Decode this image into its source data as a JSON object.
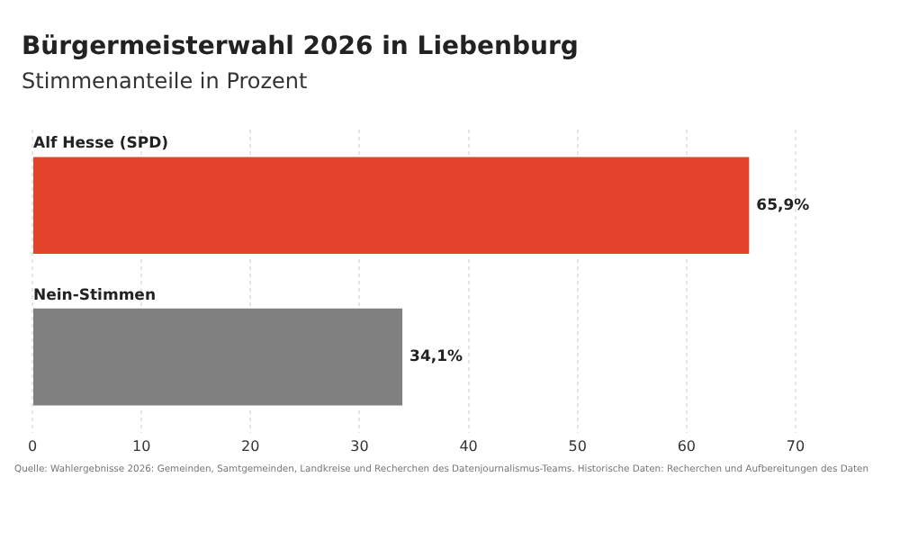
{
  "chart_data": {
    "type": "bar",
    "orientation": "horizontal",
    "title": "Bürgermeisterwahl 2026 in Liebenburg",
    "subtitle": "Stimmenanteile in Prozent",
    "categories": [
      "Alf Hesse (SPD)",
      "Nein-Stimmen"
    ],
    "values": [
      65.9,
      34.1
    ],
    "colors": [
      "#e2432a",
      "#808080"
    ],
    "value_labels": [
      "65,9%",
      "34,1%"
    ],
    "xlim": [
      0,
      70
    ],
    "xticks": [
      0,
      10,
      20,
      30,
      40,
      50,
      60,
      70
    ],
    "grid": "x",
    "legend": false,
    "annotations": [
      "Quelle: Wahlergebnisse 2026: Gemeinden, Samtgemeinden, Landkreise und Recherchen des Datenjournalismus-Teams. Historische Daten: Recherchen und Aufbereitungen des Daten"
    ]
  }
}
